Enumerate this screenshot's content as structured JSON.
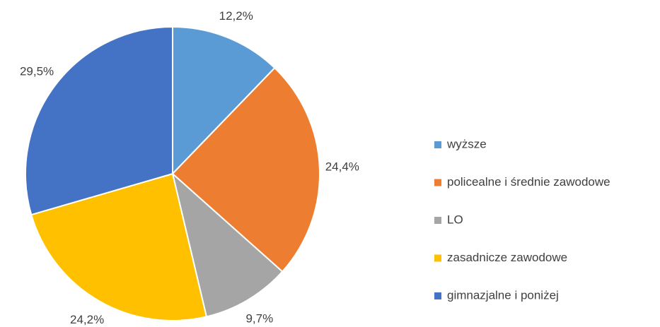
{
  "chart_data": {
    "type": "pie",
    "categories": [
      "wyższe",
      "policealne i średnie zawodowe",
      "LO",
      "zasadnicze zawodowe",
      "gimnazjalne i poniżej"
    ],
    "values": [
      12.2,
      24.4,
      9.7,
      24.2,
      29.5
    ],
    "value_labels": [
      "12,2%",
      "24,4%",
      "9,7%",
      "24,2%",
      "29,5%"
    ],
    "colors": [
      "#5b9bd5",
      "#ed7d31",
      "#a5a5a5",
      "#ffc000",
      "#4472c4"
    ],
    "legend": "right"
  }
}
